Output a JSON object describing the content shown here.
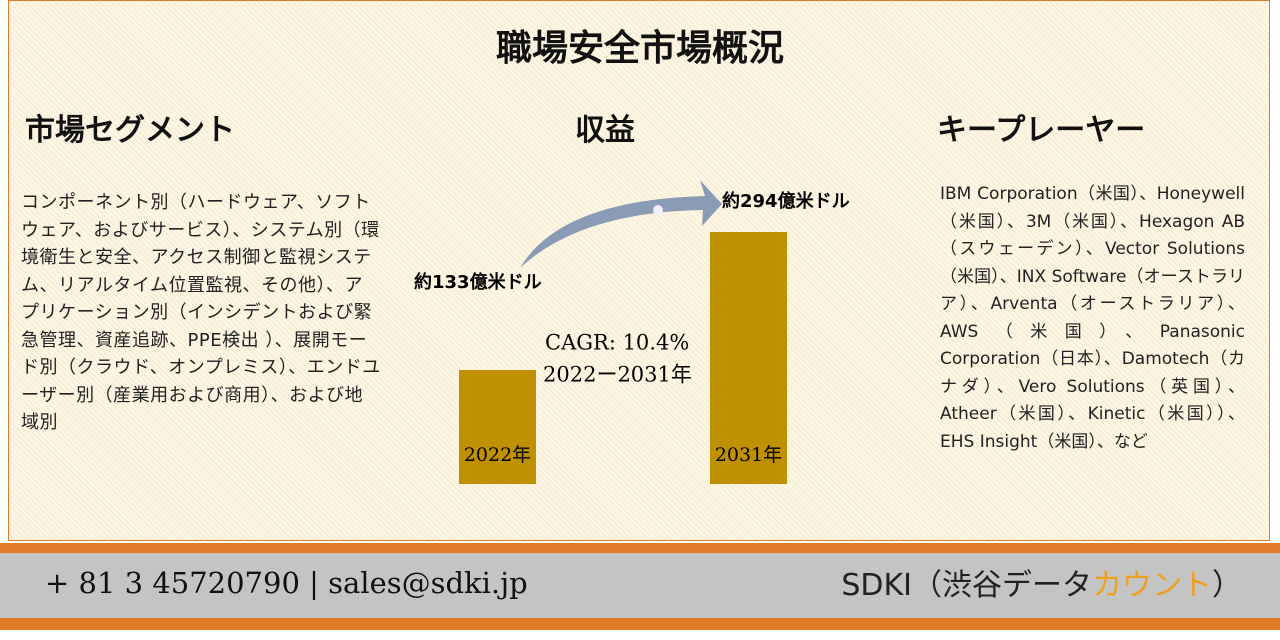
{
  "title": "職場安全市場概況",
  "segments": {
    "heading": "市場セグメント",
    "text": "コンポーネント別（ハードウェア、ソフトウェア、およびサービス）、システム別（環境衛生と安全、アクセス制御と監視システム、リアルタイム位置監視、その他）、アプリケーション別（インシデントおよび緊急管理、資産追跡、PPE検出 ）、展開モード別（クラウド、オンプレミス）、エンドユーザー別（産業用および商用）、および地域別"
  },
  "revenue": {
    "heading": "収益",
    "categories": [
      "2022年",
      "2031年"
    ],
    "values": [
      133,
      294
    ],
    "value_labels": [
      "約133億米ドル",
      "約294億米ドル"
    ],
    "color": "#bf9000",
    "cagr": "CAGR: 10.4%",
    "period": "2022ー2031年"
  },
  "players": {
    "heading": "キープレーヤー",
    "text": "IBM Corporation（米国）、Honeywell（米国）、3M（米国）、Hexagon AB（スウェーデン）、Vector Solutions（米国）、INX Software（オーストラリア）、Arventa（オーストラリア）、AWS（米国）、Panasonic Corporation（日本）、Damotech（カナダ）、Vero Solutions（英国）、Atheer（米国）、Kinetic（米国））、EHS Insight（米国）、など"
  },
  "footer": {
    "contact": "+ 81 3 45720790 | sales@sdki.jp",
    "brand_prefix": "SDKI（渋谷データ",
    "brand_highlight": "カウント",
    "brand_suffix": "）"
  }
}
